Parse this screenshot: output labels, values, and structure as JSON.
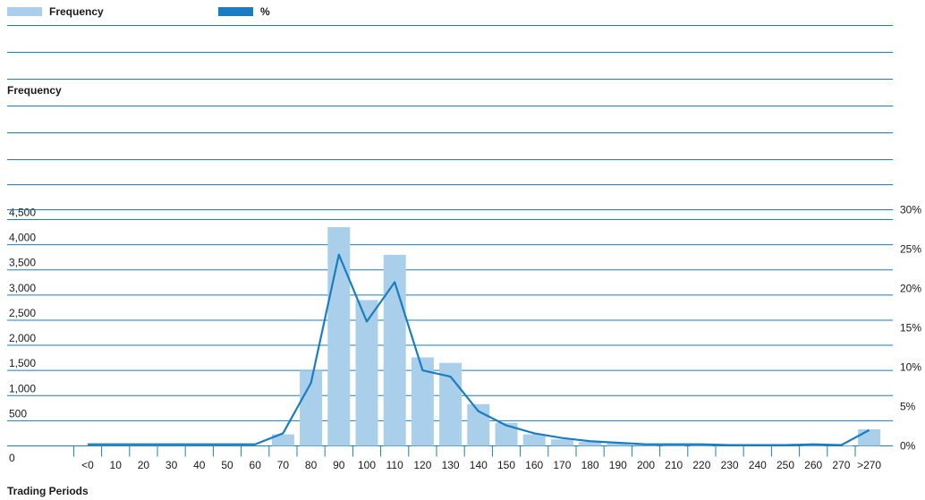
{
  "legend": {
    "frequency_label": "Frequency",
    "percent_label": "%"
  },
  "colors": {
    "bar": "#a9cfea",
    "line": "#1a7dc2",
    "rule": "#1a7dc2",
    "text": "#1a1a1a"
  },
  "chart_data": {
    "type": "bar",
    "xlabel": "Trading Periods",
    "ylabel": "Frequency",
    "categories": [
      "<0",
      "10",
      "20",
      "30",
      "40",
      "50",
      "60",
      "70",
      "80",
      "90",
      "100",
      "110",
      "120",
      "130",
      "140",
      "150",
      "160",
      "170",
      "180",
      "190",
      "200",
      "210",
      "220",
      "230",
      "240",
      "250",
      "260",
      "270",
      ">270"
    ],
    "series": [
      {
        "name": "Frequency",
        "type": "bar",
        "axis": "left",
        "values": [
          0,
          0,
          0,
          0,
          0,
          0,
          0,
          230,
          1500,
          4350,
          2900,
          3800,
          1760,
          1650,
          830,
          460,
          230,
          130,
          80,
          50,
          30,
          20,
          20,
          15,
          10,
          10,
          10,
          10,
          330
        ]
      },
      {
        "name": "%",
        "type": "line",
        "axis": "right",
        "values": [
          0.2,
          0.2,
          0.2,
          0.2,
          0.2,
          0.2,
          0.2,
          1.6,
          8.0,
          24.3,
          15.8,
          20.8,
          9.6,
          8.8,
          4.4,
          2.6,
          1.6,
          1.0,
          0.6,
          0.4,
          0.2,
          0.2,
          0.2,
          0.1,
          0.1,
          0.1,
          0.2,
          0.1,
          2.0
        ]
      }
    ],
    "y_left": {
      "ticks": [
        "0",
        "500",
        "1,000",
        "1,500",
        "2,000",
        "2,500",
        "3,000",
        "3,500",
        "4,000",
        "4,500"
      ],
      "ylim": [
        0,
        4500
      ]
    },
    "y_right": {
      "ticks": [
        "0%",
        "5%",
        "10%",
        "15%",
        "20%",
        "25%",
        "30%"
      ],
      "ylim": [
        0,
        30
      ]
    },
    "grid": true,
    "legend_position": "top-left"
  }
}
